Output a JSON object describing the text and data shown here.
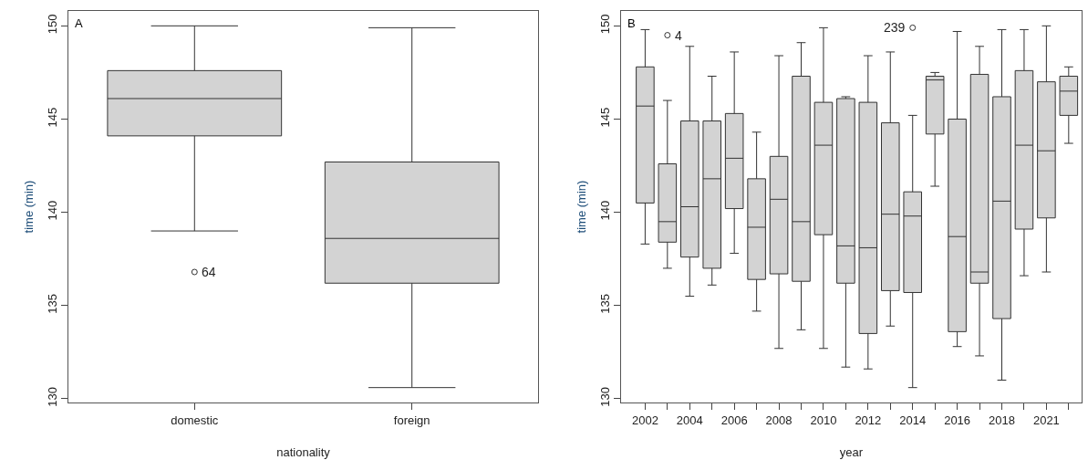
{
  "chart_data": [
    {
      "type": "box",
      "title": "A",
      "xlabel": "nationality",
      "ylabel": "time (min)",
      "categories": [
        "domestic",
        "foreign"
      ],
      "color": "#d3d3d3",
      "boxes": [
        {
          "low": 139.0,
          "q1": 144.1,
          "median": 146.1,
          "q3": 147.6,
          "high": 150.0,
          "outliers": [
            136.8
          ]
        },
        {
          "low": 130.6,
          "q1": 136.2,
          "median": 138.6,
          "q3": 142.7,
          "high": 149.9
        }
      ],
      "annotations": [
        "64"
      ],
      "ylim": [
        129.8,
        150.8
      ],
      "yticks": [
        130,
        135,
        140,
        145,
        150
      ],
      "grid": false
    },
    {
      "type": "box",
      "title": "B",
      "xlabel": "year",
      "ylabel": "time (min)",
      "categories": [
        "2002",
        null,
        "2004",
        null,
        "2006",
        null,
        "2008",
        null,
        "2010",
        null,
        "2012",
        null,
        "2014",
        null,
        "2016",
        null,
        "2018",
        null,
        "2021",
        null
      ],
      "color": "#d3d3d3",
      "boxes": [
        {
          "low": 138.3,
          "q1": 140.5,
          "median": 145.7,
          "q3": 147.8,
          "high": 149.8
        },
        {
          "low": 137.0,
          "q1": 138.4,
          "median": 139.5,
          "q3": 142.6,
          "high": 146.0,
          "outliers": [
            149.5
          ]
        },
        {
          "low": 135.5,
          "q1": 137.6,
          "median": 140.3,
          "q3": 144.9,
          "high": 148.9
        },
        {
          "low": 136.1,
          "q1": 137.0,
          "median": 141.8,
          "q3": 144.9,
          "high": 147.3
        },
        {
          "low": 137.8,
          "q1": 140.2,
          "median": 142.9,
          "q3": 145.3,
          "high": 148.6
        },
        {
          "low": 134.7,
          "q1": 136.4,
          "median": 139.2,
          "q3": 141.8,
          "high": 144.3
        },
        {
          "low": 132.7,
          "q1": 136.7,
          "median": 140.7,
          "q3": 143.0,
          "high": 148.4
        },
        {
          "low": 133.7,
          "q1": 136.3,
          "median": 139.5,
          "q3": 147.3,
          "high": 149.1
        },
        {
          "low": 132.7,
          "q1": 138.8,
          "median": 143.6,
          "q3": 145.9,
          "high": 149.9
        },
        {
          "low": 131.7,
          "q1": 136.2,
          "median": 138.2,
          "q3": 146.1,
          "high": 146.2
        },
        {
          "low": 131.6,
          "q1": 133.5,
          "median": 138.1,
          "q3": 145.9,
          "high": 148.4
        },
        {
          "low": 133.9,
          "q1": 135.8,
          "median": 139.9,
          "q3": 144.8,
          "high": 148.6
        },
        {
          "low": 130.6,
          "q1": 135.7,
          "median": 139.8,
          "q3": 141.1,
          "high": 145.2,
          "outliers": [
            149.9
          ]
        },
        {
          "low": 141.4,
          "q1": 144.2,
          "median": 147.1,
          "q3": 147.3,
          "high": 147.5
        },
        {
          "low": 132.8,
          "q1": 133.6,
          "median": 138.7,
          "q3": 145.0,
          "high": 149.7
        },
        {
          "low": 132.3,
          "q1": 136.2,
          "median": 136.8,
          "q3": 147.4,
          "high": 148.9
        },
        {
          "low": 131.0,
          "q1": 134.3,
          "median": 140.6,
          "q3": 146.2,
          "high": 149.8
        },
        {
          "low": 136.6,
          "q1": 139.1,
          "median": 143.6,
          "q3": 147.6,
          "high": 149.8
        },
        {
          "low": 136.8,
          "q1": 139.7,
          "median": 143.3,
          "q3": 147.0,
          "high": 150.0
        },
        {
          "low": 143.7,
          "q1": 145.2,
          "median": 146.5,
          "q3": 147.3,
          "high": 147.8
        }
      ],
      "annotations": [
        "4",
        "239"
      ],
      "ylim": [
        129.8,
        150.8
      ],
      "yticks": [
        130,
        135,
        140,
        145,
        150
      ],
      "grid": false
    }
  ]
}
